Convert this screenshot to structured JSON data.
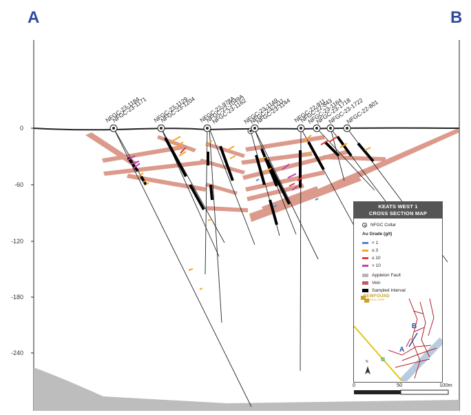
{
  "section": {
    "start_label": "A",
    "end_label": "B",
    "depth_axis": {
      "ticks": [
        "0",
        "-60",
        "-120",
        "-180",
        "-240"
      ]
    }
  },
  "drill_holes": [
    {
      "id": "NFGC-23-1184"
    },
    {
      "id": "NFGC-23-1171"
    },
    {
      "id": "NFGC-23-1129"
    },
    {
      "id": "NFGC-23-1204"
    },
    {
      "id": "NFGC-22-978A"
    },
    {
      "id": "NFGC-22-1049A"
    },
    {
      "id": "NFGC-23-1162"
    },
    {
      "id": "NFGC-23-1149"
    },
    {
      "id": "NFGC-23-1211"
    },
    {
      "id": "NFGC-23-1144"
    },
    {
      "id": "NFGC-22-911"
    },
    {
      "id": "NFGC-22-843"
    },
    {
      "id": "NFGC-23-1164"
    },
    {
      "id": "NFGC-23-1718"
    },
    {
      "id": "NFGC-23-1722"
    },
    {
      "id": "NFGC-22-801"
    }
  ],
  "legend": {
    "title_line1": "KEATS WEST 1",
    "title_line2": "CROSS SECTION MAP",
    "collar_label": "NFGC Collar",
    "grade_heading": "Au Grade (g/t)",
    "grades": [
      {
        "label": "< 1",
        "color": "#4a86c8"
      },
      {
        "label": "≤ 3",
        "color": "#f5a623"
      },
      {
        "label": "≤ 10",
        "color": "#e53935"
      },
      {
        "label": "> 10",
        "color": "#c040b0"
      }
    ],
    "fault_label": "Appleton Fault",
    "fault_color": "#b5b5b5",
    "vein_label": "Vein",
    "vein_color": "#c45a5a",
    "sampled_label": "Sampled Interval",
    "sampled_color": "#000000",
    "logo_name": "NEWFOUND",
    "logo_sub": "GOLD CORP",
    "inset_a": "A",
    "inset_b": "B",
    "north_label": "N",
    "scale": {
      "start": "0",
      "mid": "50",
      "end": "100m"
    }
  },
  "colors": {
    "accent": "#2e4a9a",
    "vein_fill": "#d99080",
    "fault_fill": "#bdbdbd"
  }
}
